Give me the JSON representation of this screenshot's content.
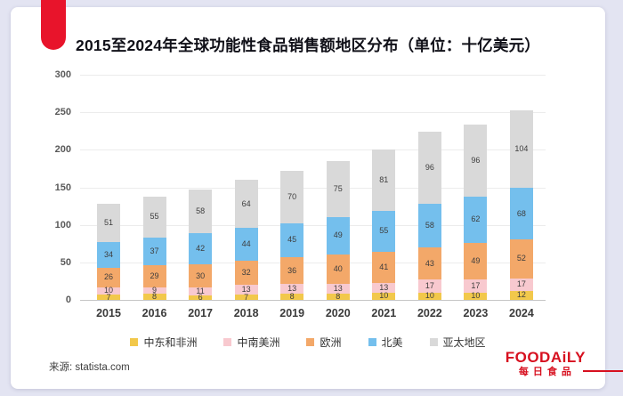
{
  "page": {
    "background_color": "#e3e4f2",
    "card_color": "#ffffff",
    "accent_red": "#e8142b",
    "logo_red": "#d7101f",
    "source": "来源: statista.com",
    "logo": {
      "name": "FOODAiLY",
      "subtitle": "每日食品"
    }
  },
  "chart_data": {
    "type": "bar",
    "stacked": true,
    "title": "2015至2024年全球功能性食品销售额地区分布（单位：十亿美元）",
    "categories": [
      "2015",
      "2016",
      "2017",
      "2018",
      "2019",
      "2020",
      "2021",
      "2022",
      "2023",
      "2024"
    ],
    "series": [
      {
        "name": "中东和非洲",
        "color": "#f2c84b",
        "values": [
          7,
          8,
          6,
          7,
          8,
          8,
          10,
          10,
          10,
          12
        ]
      },
      {
        "name": "中南美洲",
        "color": "#f8c9cf",
        "values": [
          10,
          9,
          11,
          13,
          13,
          13,
          13,
          17,
          17,
          17
        ]
      },
      {
        "name": "欧洲",
        "color": "#f3a869",
        "values": [
          26,
          29,
          30,
          32,
          36,
          40,
          41,
          43,
          49,
          52
        ]
      },
      {
        "name": "北美",
        "color": "#74bfed",
        "values": [
          34,
          37,
          42,
          44,
          45,
          49,
          55,
          58,
          62,
          68
        ]
      },
      {
        "name": "亚太地区",
        "color": "#d9d9d9",
        "values": [
          51,
          55,
          58,
          64,
          70,
          75,
          81,
          96,
          96,
          104
        ]
      }
    ],
    "ylim": [
      0,
      300
    ],
    "ytick_step": 50,
    "grid": true,
    "legend_position": "bottom",
    "value_labels": "inside-segments"
  }
}
